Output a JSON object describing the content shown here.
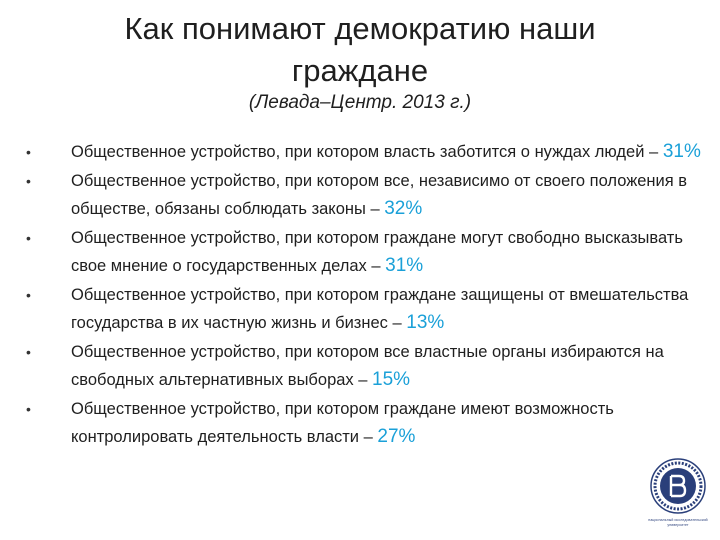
{
  "slide": {
    "title_line1": "Как понимают демократию наши",
    "title_line2": "граждане",
    "subtitle": "(Левада–Центр. 2013 г.)"
  },
  "bullets": [
    {
      "text": "Общественное устройство, при котором власть заботится о нуждах людей",
      "sep": " – ",
      "pct": "31%"
    },
    {
      "text": "Общественное устройство, при котором все, независимо от своего положения в обществе, обязаны соблюдать законы",
      "sep": " – ",
      "pct": "32%"
    },
    {
      "text": "Общественное устройство, при котором граждане могут свободно высказывать свое мнение о государственных делах",
      "sep": " – ",
      "pct": "31%"
    },
    {
      "text": "Общественное устройство, при котором граждане защищены от вмешательства государства в их частную жизнь и бизнес",
      "sep": " – ",
      "pct": "13%"
    },
    {
      "text": "Общественное устройство, при котором все властные органы избираются на свободных альтернативных выборах",
      "sep": " – ",
      "pct": "15%"
    },
    {
      "text": "Общественное устройство, при котором граждане имеют возможность контролировать деятельность власти",
      "sep": " – ",
      "pct": "27%"
    }
  ],
  "logo": {
    "caption": "национальный исследовательский университет"
  },
  "colors": {
    "accent": "#1aa0d8",
    "logo_blue": "#2a3f7a"
  }
}
